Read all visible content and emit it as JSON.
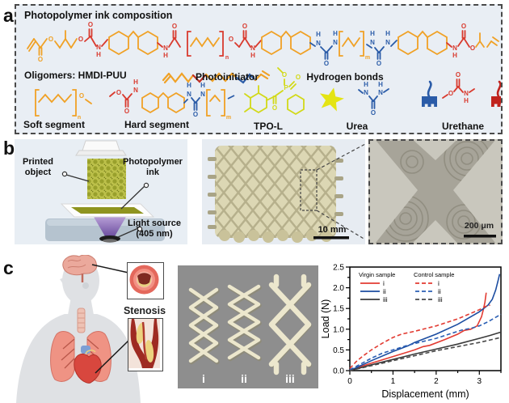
{
  "figure": {
    "panel_letters": [
      "a",
      "b",
      "c"
    ]
  },
  "atoms": {
    "O": "O",
    "N": "N",
    "H": "H",
    "P": "P"
  },
  "panel_a": {
    "title": "Photopolymer ink composition",
    "oligomers_label": "Oligomers: HMDI-PUU",
    "photoinitiator_label": "Photoinitiator",
    "hydrogen_bonds_label": "Hydrogen bonds",
    "soft_segment_label": "Soft segment",
    "hard_segment_label": "Hard segment",
    "tpo_l_label": "TPO-L",
    "urea_label": "Urea",
    "urethane_label": "Urethane",
    "bracket_subscripts": [
      "n",
      "m"
    ],
    "colors": {
      "soft_segment_orange": "#f0a125",
      "hard_segment_red": "#d93a2e",
      "urea_blue": "#2b5ca8",
      "photoinitiator_yellow": "#d2d918",
      "star_yellow": "#e4e414",
      "background": "#e9eef4"
    }
  },
  "panel_b": {
    "printed_object_label": "Printed object",
    "ink_label": "Photopolymer ink",
    "light_source_lines": [
      "Light source",
      "(405 nm)"
    ],
    "photo_scale_bar": "10 mm",
    "micro_scale_bar": "200 μm"
  },
  "panel_c": {
    "stenosis_label": "Stenosis",
    "stent_labels": [
      "i",
      "ii",
      "iii"
    ]
  },
  "chart_data": {
    "type": "line",
    "title": "",
    "xlabel": "Displacement (mm)",
    "ylabel": "Load (N)",
    "xlim": [
      0,
      3.5
    ],
    "ylim": [
      0,
      2.5
    ],
    "xticks": [
      0,
      1,
      2,
      3
    ],
    "yticks": [
      0.0,
      0.5,
      1.0,
      1.5,
      2.0,
      2.5
    ],
    "grid": false,
    "legend": {
      "col1": "Virgin sample",
      "col2": "Control sample",
      "position": "top-left"
    },
    "series": [
      {
        "name": "i",
        "group": "Virgin sample",
        "style": "solid",
        "color": "#e23b32",
        "points": [
          [
            0,
            0
          ],
          [
            0.2,
            0.08
          ],
          [
            0.5,
            0.18
          ],
          [
            1.0,
            0.34
          ],
          [
            1.5,
            0.5
          ],
          [
            1.7,
            0.58
          ],
          [
            1.85,
            0.61
          ],
          [
            2.2,
            0.75
          ],
          [
            2.5,
            0.88
          ],
          [
            2.65,
            0.97
          ],
          [
            2.8,
            1.0
          ],
          [
            2.95,
            1.08
          ],
          [
            3.05,
            1.3
          ],
          [
            3.1,
            1.5
          ],
          [
            3.13,
            1.65
          ],
          [
            3.16,
            1.88
          ]
        ]
      },
      {
        "name": "ii",
        "group": "Virgin sample",
        "style": "solid",
        "color": "#1c4da1",
        "points": [
          [
            0,
            0
          ],
          [
            0.5,
            0.24
          ],
          [
            1.0,
            0.46
          ],
          [
            1.35,
            0.6
          ],
          [
            1.5,
            0.68
          ],
          [
            2.0,
            0.88
          ],
          [
            2.5,
            1.12
          ],
          [
            3.0,
            1.42
          ],
          [
            3.1,
            1.5
          ],
          [
            3.2,
            1.58
          ],
          [
            3.3,
            1.72
          ],
          [
            3.38,
            1.95
          ],
          [
            3.44,
            2.2
          ],
          [
            3.47,
            2.33
          ]
        ]
      },
      {
        "name": "iii",
        "group": "Virgin sample",
        "style": "solid",
        "color": "#3b3b3b",
        "points": [
          [
            0,
            0
          ],
          [
            0.5,
            0.14
          ],
          [
            1.0,
            0.27
          ],
          [
            1.5,
            0.4
          ],
          [
            2.0,
            0.52
          ],
          [
            2.5,
            0.64
          ],
          [
            3.0,
            0.78
          ],
          [
            3.25,
            0.85
          ],
          [
            3.5,
            0.93
          ]
        ]
      },
      {
        "name": "i",
        "group": "Control sample",
        "style": "dashed",
        "color": "#e23b32",
        "points": [
          [
            0,
            0.05
          ],
          [
            0.15,
            0.22
          ],
          [
            0.3,
            0.35
          ],
          [
            0.5,
            0.5
          ],
          [
            0.75,
            0.66
          ],
          [
            1.0,
            0.8
          ],
          [
            1.2,
            0.88
          ],
          [
            1.5,
            0.95
          ],
          [
            2.0,
            1.08
          ],
          [
            2.5,
            1.25
          ],
          [
            2.8,
            1.38
          ],
          [
            3.0,
            1.47
          ],
          [
            3.15,
            1.55
          ],
          [
            3.25,
            1.58
          ]
        ]
      },
      {
        "name": "ii",
        "group": "Control sample",
        "style": "dashed",
        "color": "#2b5fb4",
        "points": [
          [
            0,
            0.02
          ],
          [
            0.25,
            0.16
          ],
          [
            0.5,
            0.3
          ],
          [
            0.75,
            0.42
          ],
          [
            1.0,
            0.5
          ],
          [
            1.3,
            0.6
          ],
          [
            1.6,
            0.68
          ],
          [
            2.0,
            0.78
          ],
          [
            2.3,
            0.88
          ],
          [
            2.6,
            0.98
          ],
          [
            2.8,
            1.02
          ],
          [
            3.0,
            1.08
          ],
          [
            3.2,
            1.18
          ],
          [
            3.35,
            1.27
          ],
          [
            3.5,
            1.36
          ]
        ]
      },
      {
        "name": "iii",
        "group": "Control sample",
        "style": "dashed",
        "color": "#4a4a4a",
        "points": [
          [
            0,
            0
          ],
          [
            0.5,
            0.12
          ],
          [
            1.0,
            0.24
          ],
          [
            1.5,
            0.36
          ],
          [
            2.0,
            0.48
          ],
          [
            2.5,
            0.58
          ],
          [
            3.0,
            0.68
          ],
          [
            3.5,
            0.8
          ]
        ]
      }
    ]
  }
}
